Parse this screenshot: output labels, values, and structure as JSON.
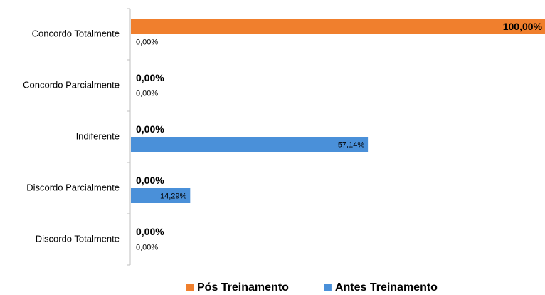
{
  "chart_data": {
    "type": "hbar",
    "categories": [
      "Concordo Totalmente",
      "Concordo Parcialmente",
      "Indiferente",
      "Discordo Parcialmente",
      "Discordo Totalmente"
    ],
    "series": [
      {
        "name": "Pós Treinamento",
        "color": "#f07f2d",
        "values": [
          100,
          0,
          0,
          0,
          0
        ],
        "value_labels": [
          "100,00%",
          "0,00%",
          "0,00%",
          "0,00%",
          "0,00%"
        ]
      },
      {
        "name": "Antes Treinamento",
        "color": "#4a90d9",
        "values": [
          0,
          0,
          57.14,
          14.29,
          0
        ],
        "value_labels": [
          "0,00%",
          "0,00%",
          "57,14%",
          "14,29%",
          "0,00%"
        ]
      }
    ],
    "xlim": [
      0,
      100
    ],
    "legend": "bottom"
  }
}
